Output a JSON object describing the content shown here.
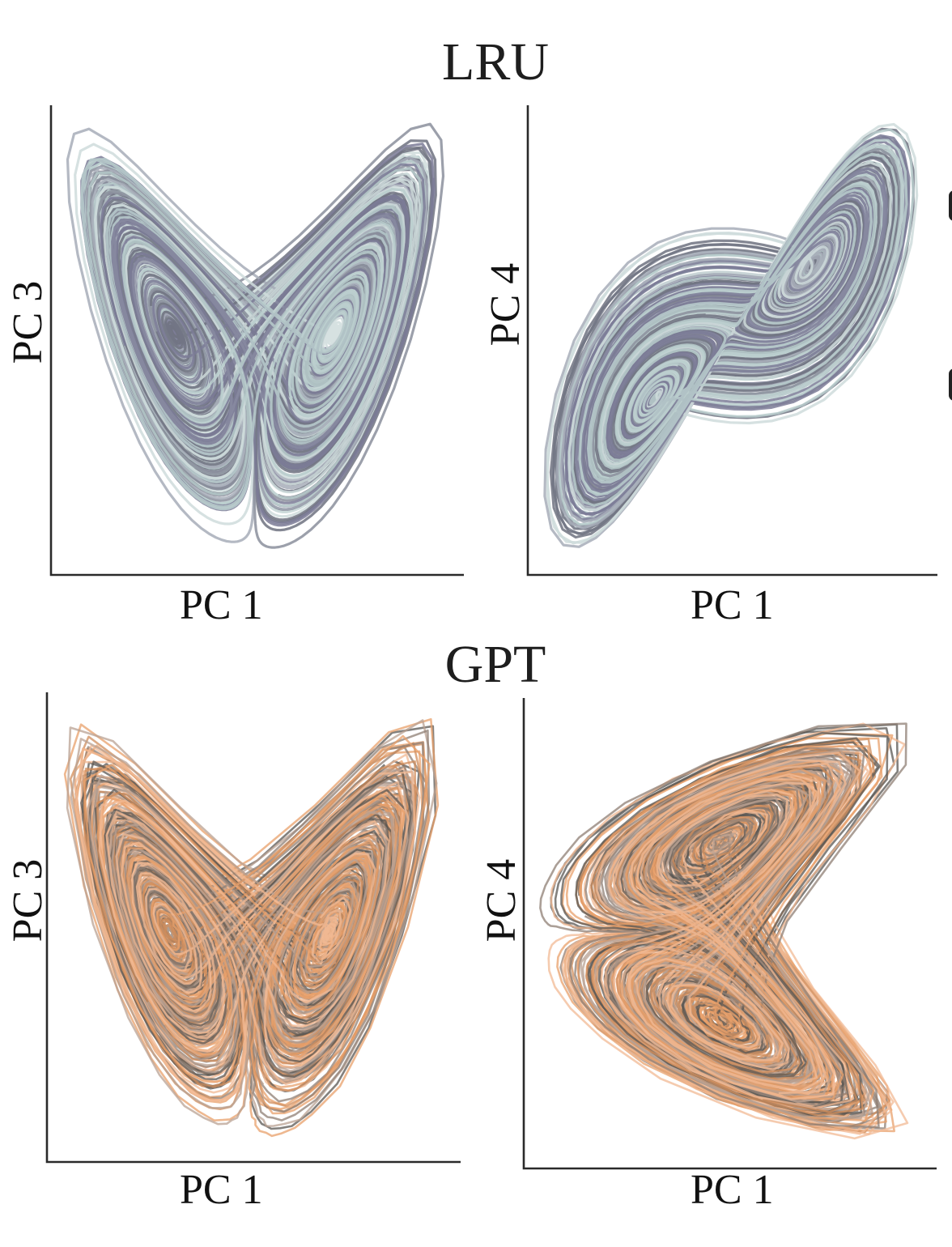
{
  "chart_data": [
    {
      "type": "line",
      "group": "LRU",
      "title": "LRU",
      "xlabel": "PC 1",
      "ylabel": "PC 3",
      "description": "Lorenz-like butterfly attractor trajectories projected onto PC1 vs PC3; small tight spiral on left, large loop on right",
      "grid": false,
      "ticks": false,
      "colors": [
        "#7b7b97",
        "#b9cccd",
        "#8b8f9c",
        "#a7adb8",
        "#6e7280",
        "#cfdcdc"
      ],
      "projection": {
        "u": "x",
        "v": "z",
        "flipU": false,
        "flipV": true
      },
      "render": {
        "seed": 11,
        "trajectories": 20,
        "steps": 2600,
        "strokeWidth": 3.2,
        "opacity": 0.85,
        "noise": 0
      }
    },
    {
      "type": "line",
      "group": "LRU",
      "title": "LRU",
      "xlabel": "PC 1",
      "ylabel": "PC 4",
      "description": "Lorenz-like two-lobe attractor projected onto PC1 vs PC4; tall narrow left lobe, rounded right lobe",
      "grid": false,
      "ticks": false,
      "colors": [
        "#7b7b97",
        "#b9cccd",
        "#8b8f9c",
        "#a7adb8",
        "#6e7280",
        "#cfdcdc"
      ],
      "projection": {
        "u": "x",
        "v": "y",
        "flipU": false,
        "flipV": true
      },
      "render": {
        "seed": 23,
        "trajectories": 20,
        "steps": 2600,
        "strokeWidth": 3.2,
        "opacity": 0.85,
        "noise": 0
      }
    },
    {
      "type": "line",
      "group": "GPT",
      "title": "GPT",
      "xlabel": "PC 1",
      "ylabel": "PC 3",
      "description": "Noisy triangular trajectories projected onto PC1 vs PC3 with spiral on left and jagged spread to right",
      "grid": false,
      "ticks": false,
      "colors": [
        "#e8a06b",
        "#f2b994",
        "#5a5753",
        "#8f7f74",
        "#d08d5c",
        "#b9a193"
      ],
      "projection": {
        "u": "x",
        "v": "z",
        "flipU": false,
        "flipV": true
      },
      "render": {
        "seed": 37,
        "trajectories": 26,
        "steps": 1100,
        "strokeWidth": 2.6,
        "opacity": 0.75,
        "noise": 0.9
      }
    },
    {
      "type": "line",
      "group": "GPT",
      "title": "GPT",
      "xlabel": "PC 1",
      "ylabel": "PC 4",
      "description": "Noisy cone-shaped trajectories projected onto PC1 vs PC4, converging at left point and fanning jaggedly to the right",
      "grid": false,
      "ticks": false,
      "colors": [
        "#e8a06b",
        "#f2b994",
        "#5a5753",
        "#8f7f74",
        "#d08d5c",
        "#b9a193"
      ],
      "projection": {
        "u": "z",
        "v": "x",
        "flipU": false,
        "flipV": true
      },
      "render": {
        "seed": 53,
        "trajectories": 26,
        "steps": 1100,
        "strokeWidth": 2.6,
        "opacity": 0.75,
        "noise": 1.1
      }
    }
  ],
  "titles": {
    "top": "LRU",
    "bottom": "GPT"
  },
  "panels": [
    {
      "xlabel": "PC 1",
      "ylabel": "PC 3"
    },
    {
      "xlabel": "PC 1",
      "ylabel": "PC 4"
    },
    {
      "xlabel": "PC 1",
      "ylabel": "PC 3"
    },
    {
      "xlabel": "PC 1",
      "ylabel": "PC 4"
    }
  ]
}
